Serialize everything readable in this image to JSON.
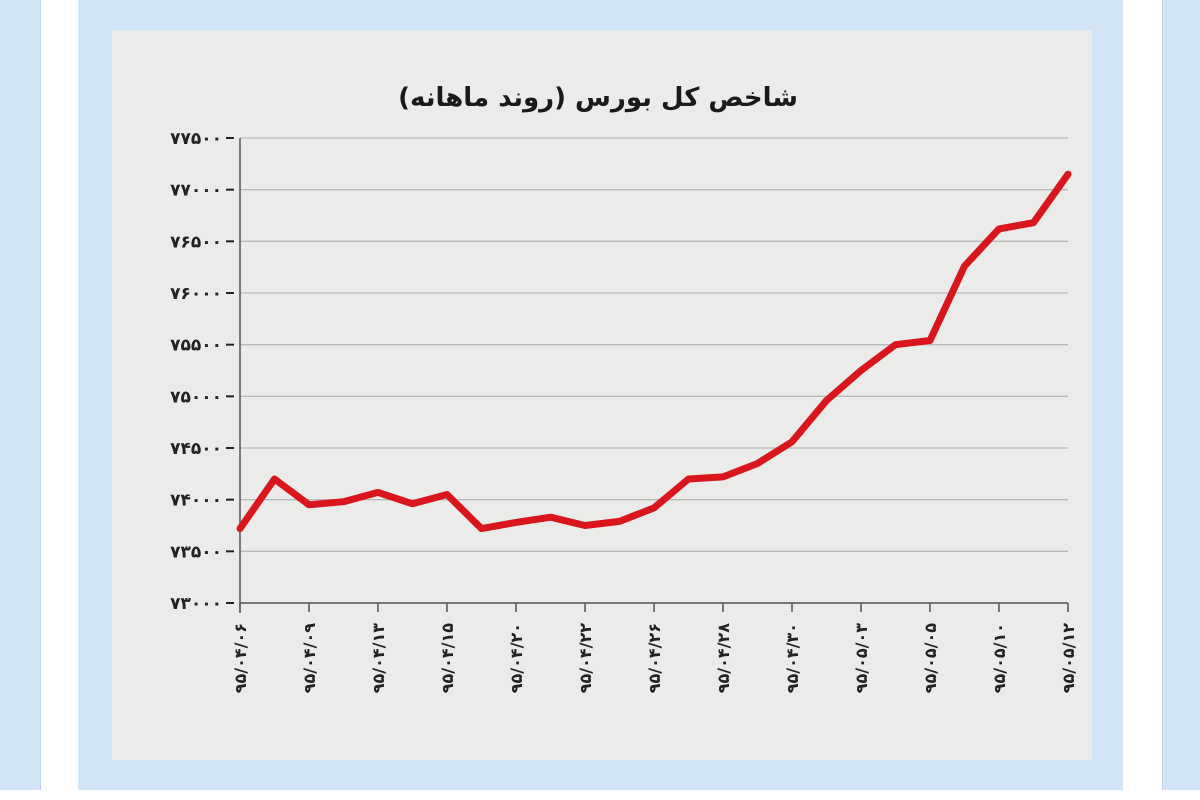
{
  "chart_data": {
    "type": "line",
    "title": "شاخص کل بورس (روند ماهانه)",
    "xlabel": "",
    "ylabel": "",
    "ylim": [
      73000,
      77500
    ],
    "yticks": [
      {
        "value": 73000,
        "label": "۷۳۰۰۰"
      },
      {
        "value": 73500,
        "label": "۷۳۵۰۰"
      },
      {
        "value": 74000,
        "label": "۷۴۰۰۰"
      },
      {
        "value": 74500,
        "label": "۷۴۵۰۰"
      },
      {
        "value": 75000,
        "label": "۷۵۰۰۰"
      },
      {
        "value": 75500,
        "label": "۷۵۵۰۰"
      },
      {
        "value": 76000,
        "label": "۷۶۰۰۰"
      },
      {
        "value": 76500,
        "label": "۷۶۵۰۰"
      },
      {
        "value": 77000,
        "label": "۷۷۰۰۰"
      },
      {
        "value": 77500,
        "label": "۷۷۵۰۰"
      }
    ],
    "xticks": [
      "۹۵/۰۴/۰۶",
      "۹۵/۰۴/۰۹",
      "۹۵/۰۴/۱۳",
      "۹۵/۰۴/۱۵",
      "۹۵/۰۴/۲۰",
      "۹۵/۰۴/۲۲",
      "۹۵/۰۴/۲۶",
      "۹۵/۰۴/۲۸",
      "۹۵/۰۴/۳۰",
      "۹۵/۰۵/۰۳",
      "۹۵/۰۵/۰۵",
      "۹۵/۰۵/۱۰",
      "۹۵/۰۵/۱۲"
    ],
    "grid": true,
    "series": [
      {
        "color": "#d8161b",
        "x": [
          0,
          0.5,
          1,
          1.5,
          2,
          2.5,
          3,
          3.5,
          4,
          4.5,
          5,
          5.5,
          6,
          6.5,
          7,
          7.5,
          8,
          8.5,
          9,
          9.5,
          10,
          10.5,
          11,
          11.5,
          12
        ],
        "values": [
          73720,
          74200,
          73950,
          73980,
          74070,
          73960,
          74050,
          73720,
          73780,
          73830,
          73750,
          73790,
          73920,
          74200,
          74220,
          74350,
          74560,
          74960,
          75250,
          75500,
          75540,
          76260,
          76620,
          76680,
          77150
        ]
      }
    ]
  }
}
